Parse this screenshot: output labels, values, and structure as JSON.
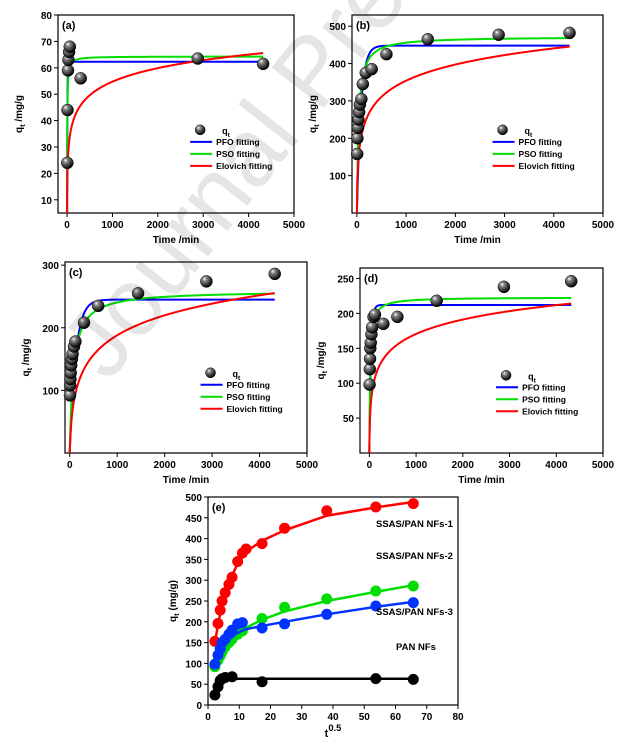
{
  "watermark": "Journal Pre-proof",
  "colors": {
    "pfo": "#0000ff",
    "pso": "#00dd00",
    "elovich": "#ff0000",
    "points": "#000000"
  },
  "chart_data": [
    {
      "panel": "(a)",
      "type": "scatter",
      "xlabel": "Time /min",
      "ylabel": "q_t /mg/g",
      "xlim": [
        -200,
        5000
      ],
      "ylim": [
        5,
        80
      ],
      "xticks": [
        0,
        1000,
        2000,
        3000,
        4000,
        5000
      ],
      "yticks": [
        10,
        20,
        30,
        40,
        50,
        60,
        70,
        80
      ],
      "legend": [
        "q_t",
        "PFO fitting",
        "PSO fitting",
        "Elovich fitting"
      ],
      "legend_position": "right",
      "points": [
        [
          5,
          24
        ],
        [
          10,
          44
        ],
        [
          20,
          59
        ],
        [
          30,
          63
        ],
        [
          45,
          66
        ],
        [
          60,
          68
        ],
        [
          300,
          56
        ],
        [
          2880,
          63.5
        ],
        [
          4320,
          61.5
        ]
      ],
      "models": {
        "pfo": {
          "qe": 62.3,
          "k1": 0.15
        },
        "pso": {
          "qe": 64.3,
          "k2": 0.004
        },
        "elovich": {
          "a": 12.0,
          "b": 0.135,
          "t0": 3
        }
      }
    },
    {
      "panel": "(b)",
      "type": "scatter",
      "xlabel": "Time /min",
      "ylabel": "q_t /mg/g",
      "xlim": [
        -100,
        5000
      ],
      "ylim": [
        0,
        530
      ],
      "xticks": [
        0,
        1000,
        2000,
        3000,
        4000,
        5000
      ],
      "yticks": [
        100,
        200,
        300,
        400,
        500
      ],
      "legend": [
        "q_t",
        "PFO fitting",
        "PSO fitting",
        "Elovich fitting"
      ],
      "legend_position": "right",
      "points": [
        [
          5,
          158
        ],
        [
          10,
          200
        ],
        [
          20,
          228
        ],
        [
          30,
          250
        ],
        [
          45,
          270
        ],
        [
          60,
          290
        ],
        [
          90,
          305
        ],
        [
          120,
          345
        ],
        [
          180,
          375
        ],
        [
          300,
          385
        ],
        [
          600,
          425
        ],
        [
          1440,
          465
        ],
        [
          2880,
          477
        ],
        [
          4320,
          482
        ]
      ],
      "models": {
        "pfo": {
          "qe": 448,
          "k1": 0.012
        },
        "pso": {
          "qe": 472,
          "k2": 6e-05
        },
        "elovich": {
          "a": 18.0,
          "b": 0.016,
          "t0": 3
        }
      }
    },
    {
      "panel": "(c)",
      "type": "scatter",
      "xlabel": "Time /min",
      "ylabel": "q_t /mg/g",
      "xlim": [
        -100,
        5000
      ],
      "ylim": [
        0,
        305
      ],
      "xticks": [
        0,
        1000,
        2000,
        3000,
        4000,
        5000
      ],
      "yticks": [
        100,
        200,
        300
      ],
      "legend": [
        "q_t",
        "PFO fitting",
        "PSO fitting",
        "Elovich fitting"
      ],
      "legend_position": "right",
      "points": [
        [
          5,
          92
        ],
        [
          10,
          108
        ],
        [
          15,
          118
        ],
        [
          20,
          128
        ],
        [
          30,
          140
        ],
        [
          45,
          150
        ],
        [
          60,
          158
        ],
        [
          90,
          170
        ],
        [
          120,
          178
        ],
        [
          300,
          208
        ],
        [
          600,
          235
        ],
        [
          1440,
          255
        ],
        [
          2880,
          274
        ],
        [
          4320,
          286
        ]
      ],
      "models": {
        "pfo": {
          "qe": 245,
          "k1": 0.008
        },
        "pso": {
          "qe": 259,
          "k2": 5e-05
        },
        "elovich": {
          "a": 2.6,
          "b": 0.0215,
          "t0": 3
        }
      }
    },
    {
      "panel": "(d)",
      "type": "scatter",
      "xlabel": "Time /min",
      "ylabel": "q_t /mg/g",
      "xlim": [
        -200,
        5000
      ],
      "ylim": [
        0,
        265
      ],
      "xticks": [
        0,
        1000,
        2000,
        3000,
        4000,
        5000
      ],
      "yticks": [
        50,
        100,
        150,
        200,
        250
      ],
      "legend": [
        "q_t",
        "PFO fitting",
        "PSO fitting",
        "Elovich fitting"
      ],
      "legend_position": "right",
      "points": [
        [
          5,
          98
        ],
        [
          10,
          120
        ],
        [
          15,
          135
        ],
        [
          20,
          150
        ],
        [
          30,
          158
        ],
        [
          45,
          170
        ],
        [
          60,
          180
        ],
        [
          90,
          195
        ],
        [
          120,
          198
        ],
        [
          300,
          185
        ],
        [
          600,
          195
        ],
        [
          1440,
          218
        ],
        [
          2880,
          238
        ],
        [
          4320,
          246
        ]
      ],
      "models": {
        "pfo": {
          "qe": 212,
          "k1": 0.03
        },
        "pso": {
          "qe": 223,
          "k2": 0.00025
        },
        "elovich": {
          "a": 9.0,
          "b": 0.0335,
          "t0": 3
        }
      }
    },
    {
      "panel": "(e)",
      "type": "scatter",
      "xlabel": "t^0.5",
      "ylabel": "q_t (mg/g)",
      "xlim": [
        0,
        80
      ],
      "ylim": [
        0,
        500
      ],
      "xticks": [
        0,
        10,
        20,
        30,
        40,
        50,
        60,
        70,
        80
      ],
      "yticks": [
        0,
        50,
        100,
        150,
        200,
        250,
        300,
        350,
        400,
        450,
        500
      ],
      "series": [
        {
          "name": "SSAS/PAN NFs-1",
          "color": "#ff0000",
          "points": [
            [
              2.2,
              153
            ],
            [
              3.2,
              196
            ],
            [
              3.9,
              228
            ],
            [
              4.5,
              250
            ],
            [
              5.5,
              270
            ],
            [
              6.7,
              290
            ],
            [
              7.7,
              307
            ],
            [
              9.5,
              345
            ],
            [
              11,
              365
            ],
            [
              12.2,
              375
            ],
            [
              17.3,
              388
            ],
            [
              24.5,
              425
            ],
            [
              38,
              467
            ],
            [
              53.7,
              476
            ],
            [
              65.7,
              484
            ]
          ],
          "fit": [
            [
              2.2,
              150
            ],
            [
              3.5,
              205
            ],
            [
              5,
              255
            ],
            [
              7,
              300
            ],
            [
              9.5,
              340
            ],
            [
              12.5,
              370
            ],
            [
              17.3,
              395
            ],
            [
              24.5,
              420
            ],
            [
              38,
              455
            ],
            [
              53.7,
              475
            ],
            [
              65.7,
              488
            ]
          ]
        },
        {
          "name": "SSAS/PAN NFs-2",
          "color": "#00dd00",
          "points": [
            [
              2.2,
              92
            ],
            [
              3.2,
              108
            ],
            [
              3.9,
              118
            ],
            [
              4.5,
              128
            ],
            [
              5.5,
              140
            ],
            [
              6.7,
              150
            ],
            [
              7.7,
              158
            ],
            [
              9.5,
              170
            ],
            [
              11,
              178
            ],
            [
              17.3,
              208
            ],
            [
              24.5,
              235
            ],
            [
              38,
              255
            ],
            [
              53.7,
              274
            ],
            [
              65.7,
              286
            ]
          ],
          "fit": [
            [
              2.2,
              95
            ],
            [
              4,
              125
            ],
            [
              6,
              148
            ],
            [
              9,
              170
            ],
            [
              12,
              185
            ],
            [
              17.3,
              205
            ],
            [
              24.5,
              225
            ],
            [
              38,
              250
            ],
            [
              53.7,
              272
            ],
            [
              65.7,
              288
            ]
          ]
        },
        {
          "name": "SSAS/PAN NFs-3",
          "color": "#0033ff",
          "points": [
            [
              2.2,
              98
            ],
            [
              3.2,
              120
            ],
            [
              3.9,
              135
            ],
            [
              4.5,
              150
            ],
            [
              5.5,
              158
            ],
            [
              6.7,
              170
            ],
            [
              7.7,
              180
            ],
            [
              9.5,
              195
            ],
            [
              11,
              198
            ],
            [
              17.3,
              185
            ],
            [
              24.5,
              195
            ],
            [
              38,
              218
            ],
            [
              53.7,
              238
            ],
            [
              65.7,
              246
            ]
          ],
          "fit": [
            [
              2.2,
              100
            ],
            [
              4,
              130
            ],
            [
              6,
              152
            ],
            [
              9,
              172
            ],
            [
              12,
              182
            ],
            [
              17.3,
              190
            ],
            [
              24.5,
              200
            ],
            [
              38,
              218
            ],
            [
              53.7,
              236
            ],
            [
              65.7,
              248
            ]
          ]
        },
        {
          "name": "PAN NFs",
          "color": "#000000",
          "points": [
            [
              2.2,
              24
            ],
            [
              3.2,
              44
            ],
            [
              3.9,
              59
            ],
            [
              4.5,
              63
            ],
            [
              5.5,
              66
            ],
            [
              7.7,
              68
            ],
            [
              17.3,
              56
            ],
            [
              53.7,
              63.5
            ],
            [
              65.7,
              61.5
            ]
          ],
          "fit": [
            [
              2.2,
              25
            ],
            [
              3.5,
              45
            ],
            [
              5,
              58
            ],
            [
              7,
              62
            ],
            [
              10,
              63
            ],
            [
              20,
              63
            ],
            [
              40,
              63
            ],
            [
              65.7,
              63
            ]
          ]
        }
      ]
    }
  ]
}
